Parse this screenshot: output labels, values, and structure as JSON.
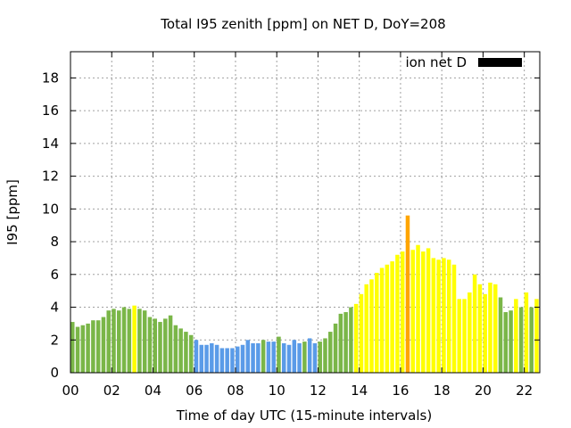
{
  "chart_data": {
    "type": "bar",
    "title": "Total I95 zenith [ppm] on NET D, DoY=208",
    "xlabel": "Time of day UTC (15-minute intervals)",
    "ylabel": "I95 [ppm]",
    "xlim": [
      0,
      22.75
    ],
    "ylim": [
      0,
      19.6
    ],
    "x_ticks": [
      "00",
      "02",
      "04",
      "06",
      "08",
      "10",
      "12",
      "14",
      "16",
      "18",
      "20",
      "22"
    ],
    "y_ticks": [
      "0",
      "2",
      "4",
      "6",
      "8",
      "10",
      "12",
      "14",
      "16",
      "18"
    ],
    "grid": true,
    "legend": {
      "label": "ion net D",
      "color": "#000000",
      "placement": "top-right"
    },
    "interval_hours": 0.25,
    "start_hour": 0,
    "colors": {
      "green": "#7ab648",
      "yellow": "#ffff00",
      "blue": "#5a9be8",
      "orange": "#ffa500"
    },
    "values": [
      3.1,
      2.8,
      2.9,
      3.0,
      3.2,
      3.2,
      3.4,
      3.8,
      3.9,
      3.8,
      4.0,
      3.9,
      4.1,
      3.9,
      3.8,
      3.4,
      3.3,
      3.1,
      3.3,
      3.5,
      2.9,
      2.7,
      2.5,
      2.3,
      2.0,
      1.7,
      1.7,
      1.8,
      1.7,
      1.5,
      1.5,
      1.5,
      1.6,
      1.7,
      2.0,
      1.8,
      1.8,
      2.0,
      1.9,
      1.9,
      2.2,
      1.8,
      1.7,
      2.0,
      1.8,
      1.9,
      2.1,
      1.8,
      1.9,
      2.1,
      2.5,
      3.0,
      3.6,
      3.7,
      4.0,
      4.2,
      4.8,
      5.4,
      5.7,
      6.1,
      6.4,
      6.6,
      6.8,
      7.2,
      7.4,
      9.6,
      7.5,
      7.8,
      7.4,
      7.6,
      7.0,
      6.9,
      7.0,
      6.9,
      6.6,
      4.5,
      4.5,
      4.9,
      6.0,
      5.4,
      4.8,
      5.5,
      5.4,
      4.6,
      3.7,
      3.8,
      4.5,
      4.0,
      4.9,
      4.0,
      4.5,
      4.0
    ],
    "bar_colors": [
      "green",
      "green",
      "green",
      "green",
      "green",
      "green",
      "green",
      "green",
      "green",
      "green",
      "green",
      "green",
      "yellow",
      "green",
      "green",
      "green",
      "green",
      "green",
      "green",
      "green",
      "green",
      "green",
      "green",
      "green",
      "blue",
      "blue",
      "blue",
      "blue",
      "blue",
      "blue",
      "blue",
      "blue",
      "blue",
      "blue",
      "blue",
      "blue",
      "blue",
      "green",
      "blue",
      "blue",
      "green",
      "blue",
      "blue",
      "blue",
      "blue",
      "green",
      "blue",
      "blue",
      "green",
      "green",
      "green",
      "green",
      "green",
      "green",
      "green",
      "yellow",
      "yellow",
      "yellow",
      "yellow",
      "yellow",
      "yellow",
      "yellow",
      "yellow",
      "yellow",
      "yellow",
      "orange",
      "yellow",
      "yellow",
      "yellow",
      "yellow",
      "yellow",
      "yellow",
      "yellow",
      "yellow",
      "yellow",
      "yellow",
      "yellow",
      "yellow",
      "yellow",
      "yellow",
      "yellow",
      "yellow",
      "yellow",
      "green",
      "green",
      "green",
      "yellow",
      "green",
      "yellow",
      "green",
      "yellow",
      "green"
    ]
  }
}
